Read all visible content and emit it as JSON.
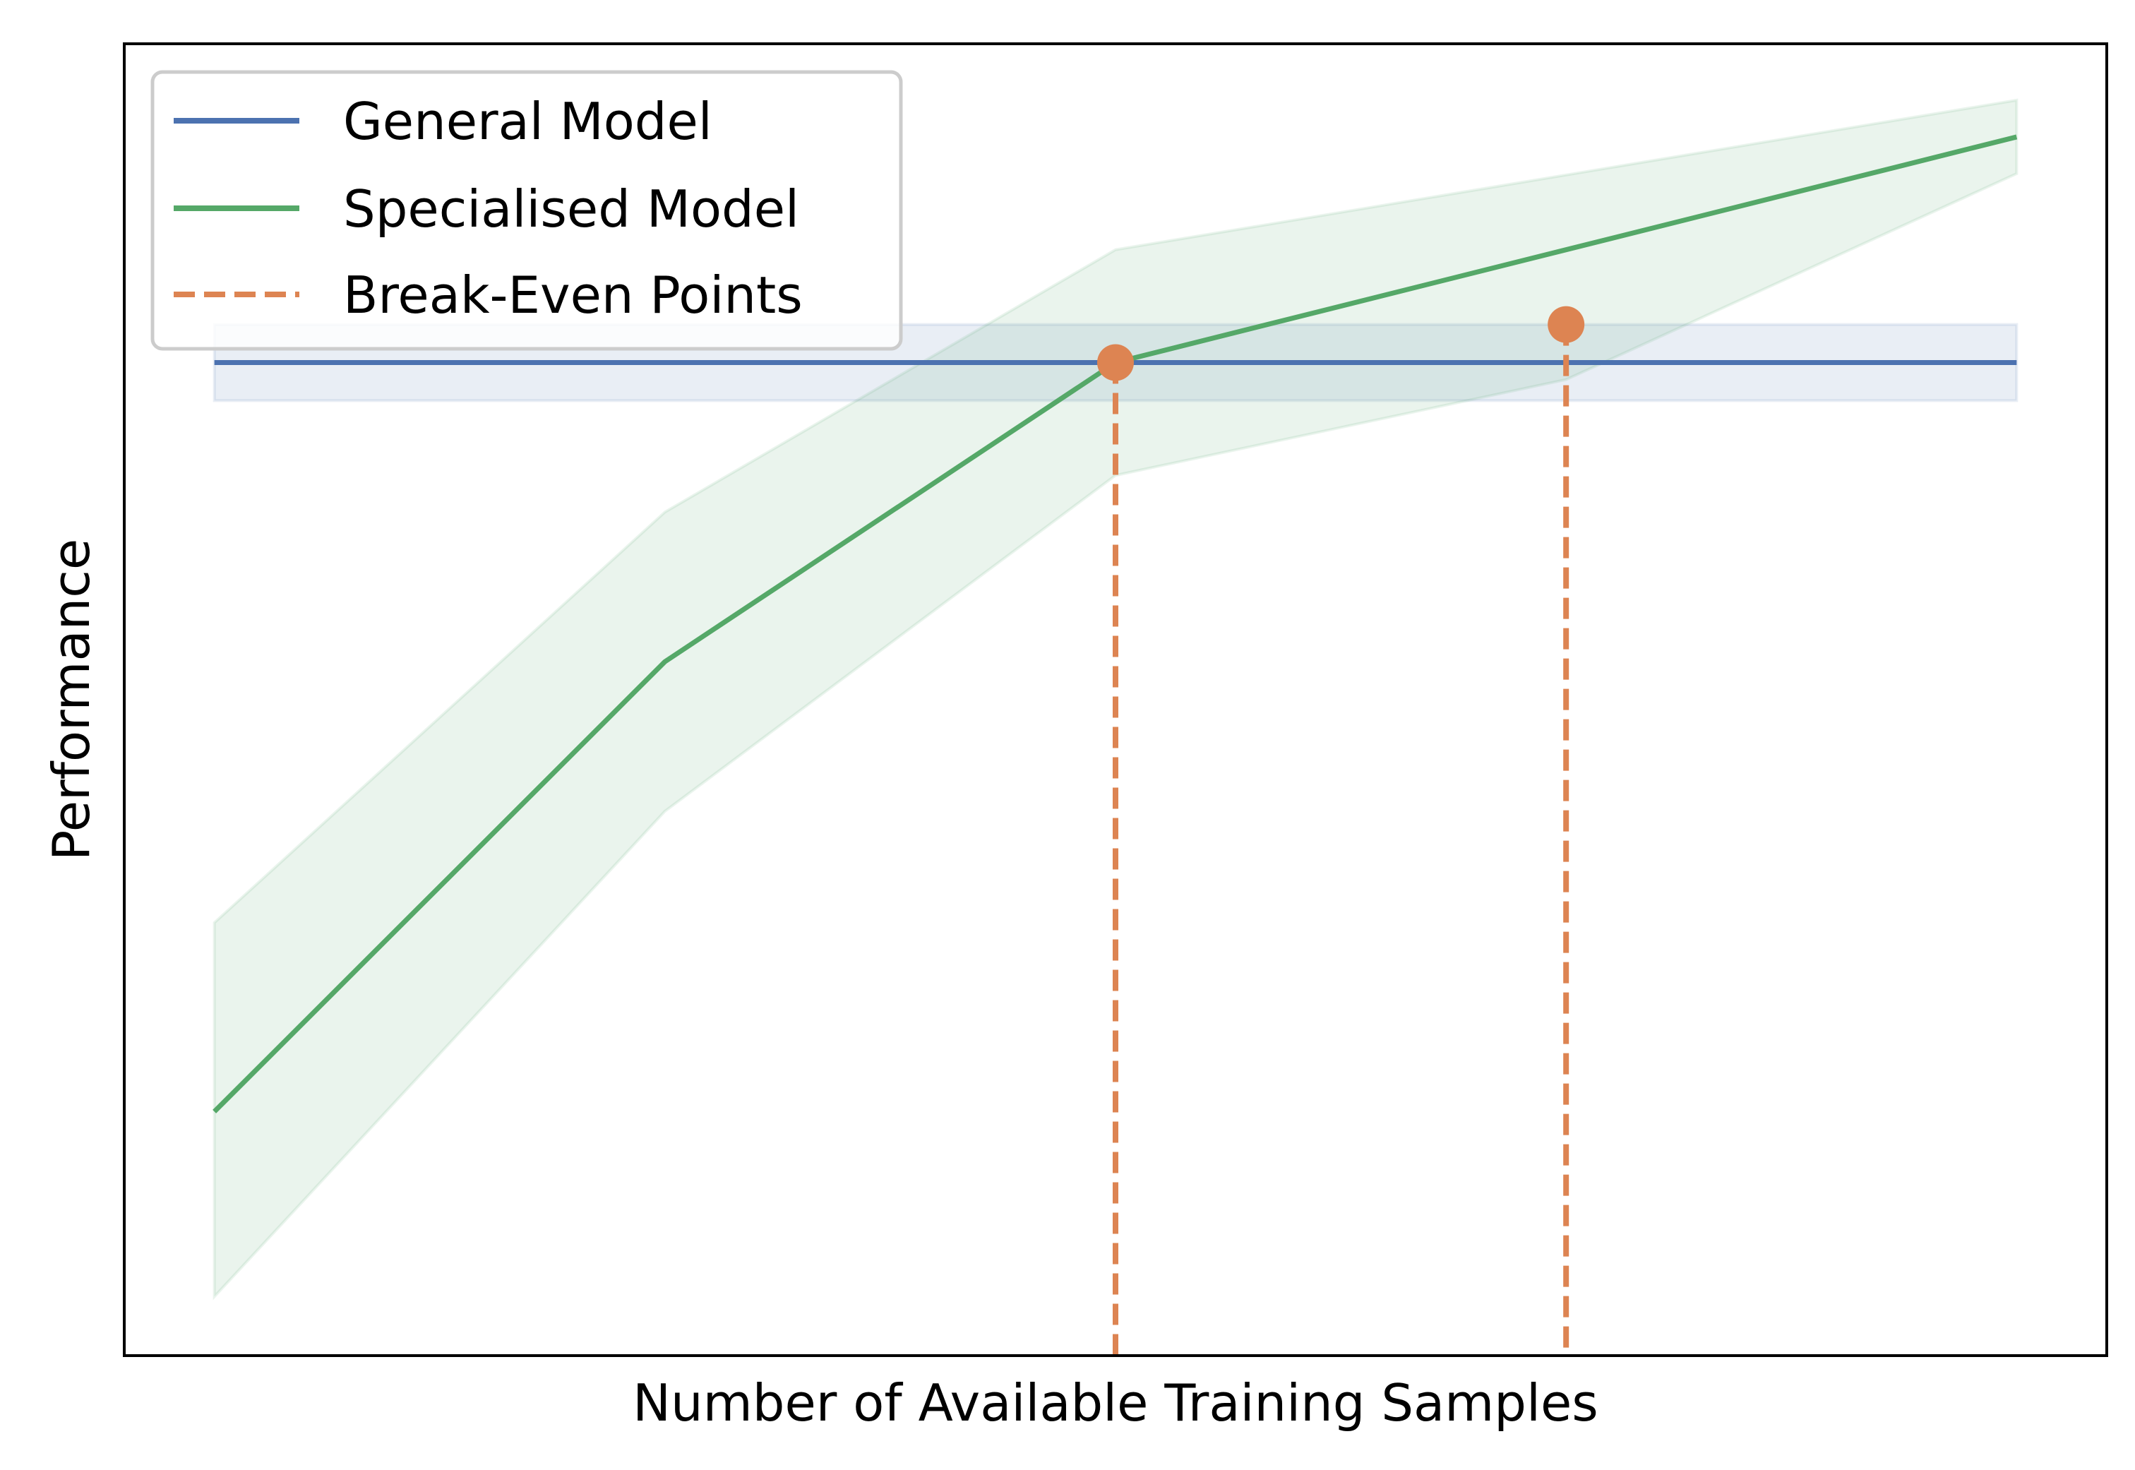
{
  "chart_data": {
    "type": "line",
    "xlabel": "Number of Available Training Samples",
    "ylabel": "Performance",
    "x_ticks_visible": false,
    "y_ticks_visible": false,
    "grid": false,
    "xlim": [
      -0.2,
      4.2
    ],
    "ylim": [
      0.0,
      1.0
    ],
    "legend": {
      "placement": "top-left",
      "entries": [
        {
          "label": "General Model",
          "style": "solid",
          "color": "#4c72b0"
        },
        {
          "label": "Specialised Model",
          "style": "solid",
          "color": "#55a868"
        },
        {
          "label": "Break-Even Points",
          "style": "dashed",
          "color": "#dd8452"
        }
      ]
    },
    "series": [
      {
        "name": "General Model",
        "color": "#4c72b0",
        "x": [
          0,
          4
        ],
        "y": [
          0.757,
          0.757
        ],
        "band_lower": [
          0.728,
          0.728
        ],
        "band_upper": [
          0.786,
          0.786
        ]
      },
      {
        "name": "Specialised Model",
        "color": "#55a868",
        "x": [
          0,
          1,
          2,
          3,
          4
        ],
        "y": [
          0.186,
          0.529,
          0.757,
          0.843,
          0.929
        ],
        "band_lower": [
          0.045,
          0.415,
          0.671,
          0.744,
          0.901
        ],
        "band_upper": [
          0.33,
          0.643,
          0.843,
          0.9,
          0.957
        ]
      }
    ],
    "break_even_points": {
      "name": "Break-Even Points",
      "color": "#dd8452",
      "points": [
        {
          "x": 2,
          "y": 0.757
        },
        {
          "x": 3,
          "y": 0.786
        }
      ]
    }
  }
}
